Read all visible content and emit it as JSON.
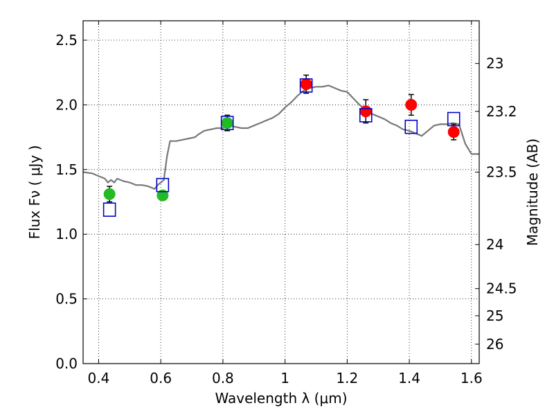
{
  "chart_data": {
    "type": "scatter",
    "xlabel": "Wavelength  λ (μm)",
    "ylabel": "Flux  Fν  ( μJy )",
    "y2label": "Magnitude (AB)",
    "xlim": [
      0.35,
      1.625
    ],
    "ylim": [
      0.0,
      2.65
    ],
    "grid": true,
    "grid_style": "dotted",
    "x_ticks": [
      0.4,
      0.6,
      0.8,
      1.0,
      1.2,
      1.4,
      1.6
    ],
    "x_tick_labels": [
      "0.4",
      "0.6",
      "0.8",
      "1",
      "1.2",
      "1.4",
      "1.6"
    ],
    "y_ticks": [
      0.0,
      0.5,
      1.0,
      1.5,
      2.0,
      2.5
    ],
    "y_tick_labels": [
      "0.0",
      "0.5",
      "1.0",
      "1.5",
      "2.0",
      "2.5"
    ],
    "y2_ticks": [
      {
        "flux": 2.32,
        "label": "23"
      },
      {
        "flux": 1.95,
        "label": "23.2"
      },
      {
        "flux": 1.48,
        "label": "23.5"
      },
      {
        "flux": 0.92,
        "label": "24"
      },
      {
        "flux": 0.58,
        "label": "24.5"
      },
      {
        "flux": 0.37,
        "label": "25"
      },
      {
        "flux": 0.15,
        "label": "26"
      }
    ],
    "series": [
      {
        "marker": "filled-circle",
        "color": "#22bb22",
        "errorbars": true,
        "points": [
          {
            "x": 0.435,
            "y": 1.31,
            "err": 0.06
          },
          {
            "x": 0.606,
            "y": 1.3,
            "err": 0.03
          },
          {
            "x": 0.814,
            "y": 1.86,
            "err": 0.06
          }
        ]
      },
      {
        "marker": "filled-circle",
        "color": "#ff0000",
        "errorbars": true,
        "points": [
          {
            "x": 1.068,
            "y": 2.16,
            "err": 0.07
          },
          {
            "x": 1.26,
            "y": 1.95,
            "err": 0.09
          },
          {
            "x": 1.406,
            "y": 2.0,
            "err": 0.08
          },
          {
            "x": 1.543,
            "y": 1.79,
            "err": 0.06
          }
        ]
      },
      {
        "marker": "open-square",
        "color": "#0000cc",
        "errorbars": false,
        "points": [
          {
            "x": 0.435,
            "y": 1.19
          },
          {
            "x": 0.606,
            "y": 1.38
          },
          {
            "x": 0.814,
            "y": 1.86
          },
          {
            "x": 1.068,
            "y": 2.15
          },
          {
            "x": 1.26,
            "y": 1.92
          },
          {
            "x": 1.406,
            "y": 1.83
          },
          {
            "x": 1.543,
            "y": 1.89
          }
        ]
      },
      {
        "type": "line",
        "color": "#777777",
        "x": [
          0.35,
          0.38,
          0.4,
          0.42,
          0.43,
          0.44,
          0.45,
          0.46,
          0.48,
          0.5,
          0.52,
          0.54,
          0.56,
          0.58,
          0.59,
          0.6,
          0.61,
          0.62,
          0.63,
          0.65,
          0.67,
          0.69,
          0.71,
          0.72,
          0.74,
          0.76,
          0.78,
          0.8,
          0.81,
          0.82,
          0.84,
          0.86,
          0.88,
          0.9,
          0.92,
          0.94,
          0.96,
          0.98,
          1.0,
          1.02,
          1.04,
          1.06,
          1.08,
          1.1,
          1.12,
          1.14,
          1.16,
          1.18,
          1.2,
          1.22,
          1.24,
          1.26,
          1.28,
          1.3,
          1.32,
          1.34,
          1.36,
          1.38,
          1.4,
          1.42,
          1.44,
          1.46,
          1.48,
          1.5,
          1.52,
          1.54,
          1.56,
          1.58,
          1.6,
          1.625
        ],
        "y": [
          1.48,
          1.47,
          1.45,
          1.43,
          1.4,
          1.42,
          1.4,
          1.43,
          1.41,
          1.4,
          1.38,
          1.38,
          1.37,
          1.35,
          1.38,
          1.4,
          1.42,
          1.6,
          1.72,
          1.72,
          1.73,
          1.74,
          1.75,
          1.77,
          1.8,
          1.81,
          1.82,
          1.82,
          1.85,
          1.84,
          1.83,
          1.82,
          1.82,
          1.84,
          1.86,
          1.88,
          1.9,
          1.93,
          1.98,
          2.02,
          2.07,
          2.11,
          2.13,
          2.14,
          2.14,
          2.15,
          2.13,
          2.11,
          2.1,
          2.05,
          2.0,
          1.96,
          1.93,
          1.91,
          1.89,
          1.86,
          1.84,
          1.81,
          1.8,
          1.78,
          1.76,
          1.8,
          1.84,
          1.85,
          1.85,
          1.86,
          1.85,
          1.7,
          1.62,
          1.62
        ]
      }
    ]
  }
}
